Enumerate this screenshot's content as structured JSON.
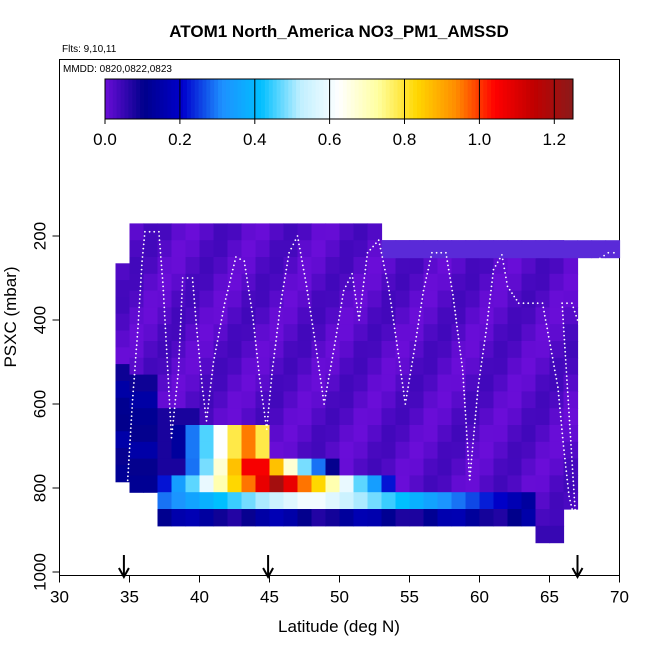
{
  "chart_data": {
    "type": "heatmap",
    "title": "ATOM1 North_America NO3_PM1_AMSSD",
    "flights_note": "Flts: 9,10,11",
    "dates_note": "MMDD: 0820,0822,0823",
    "xlabel": "Latitude (deg N)",
    "ylabel": "PSXC (mbar)",
    "xlim": [
      30,
      70
    ],
    "ylim": [
      1000,
      0
    ],
    "xticks": [
      "30",
      "35",
      "40",
      "45",
      "50",
      "55",
      "60",
      "65",
      "70"
    ],
    "yticks": [
      "200",
      "400",
      "600",
      "800",
      "1000"
    ],
    "colorbar": {
      "min": 0.0,
      "max": 1.25,
      "ticks": [
        "0.0",
        "0.2",
        "0.4",
        "0.6",
        "0.8",
        "1.0",
        "1.2"
      ],
      "colors": [
        "#6a0dd8",
        "#00008b",
        "#0000cd",
        "#1e90ff",
        "#00bfff",
        "#bfefff",
        "#ffffff",
        "#ffffa0",
        "#ffd700",
        "#ff8c00",
        "#ff0000",
        "#c00000",
        "#8b1a1a"
      ]
    },
    "arrows_lat": [
      34.6,
      44.9,
      67.0
    ],
    "grid": false,
    "heatmap": {
      "description": "Gridded NO3 values by latitude bin (deg N) and pressure bin (mbar)",
      "cells": [
        {
          "lat": 36.5,
          "p": 820,
          "v": 0.5
        },
        {
          "lat": 37.5,
          "p": 820,
          "v": 0.3
        },
        {
          "lat": 38.5,
          "p": 820,
          "v": 0.12
        },
        {
          "lat": 39.5,
          "p": 780,
          "v": 0.3
        },
        {
          "lat": 40.5,
          "p": 780,
          "v": 0.55
        },
        {
          "lat": 41.5,
          "p": 780,
          "v": 0.7
        },
        {
          "lat": 42.5,
          "p": 780,
          "v": 0.95
        },
        {
          "lat": 43.5,
          "p": 780,
          "v": 1.1
        },
        {
          "lat": 44.5,
          "p": 780,
          "v": 1.2
        },
        {
          "lat": 45.5,
          "p": 780,
          "v": 1.15
        },
        {
          "lat": 46.5,
          "p": 780,
          "v": 0.95
        },
        {
          "lat": 47.5,
          "p": 780,
          "v": 0.8
        },
        {
          "lat": 48.5,
          "p": 780,
          "v": 0.55
        }
      ]
    }
  }
}
